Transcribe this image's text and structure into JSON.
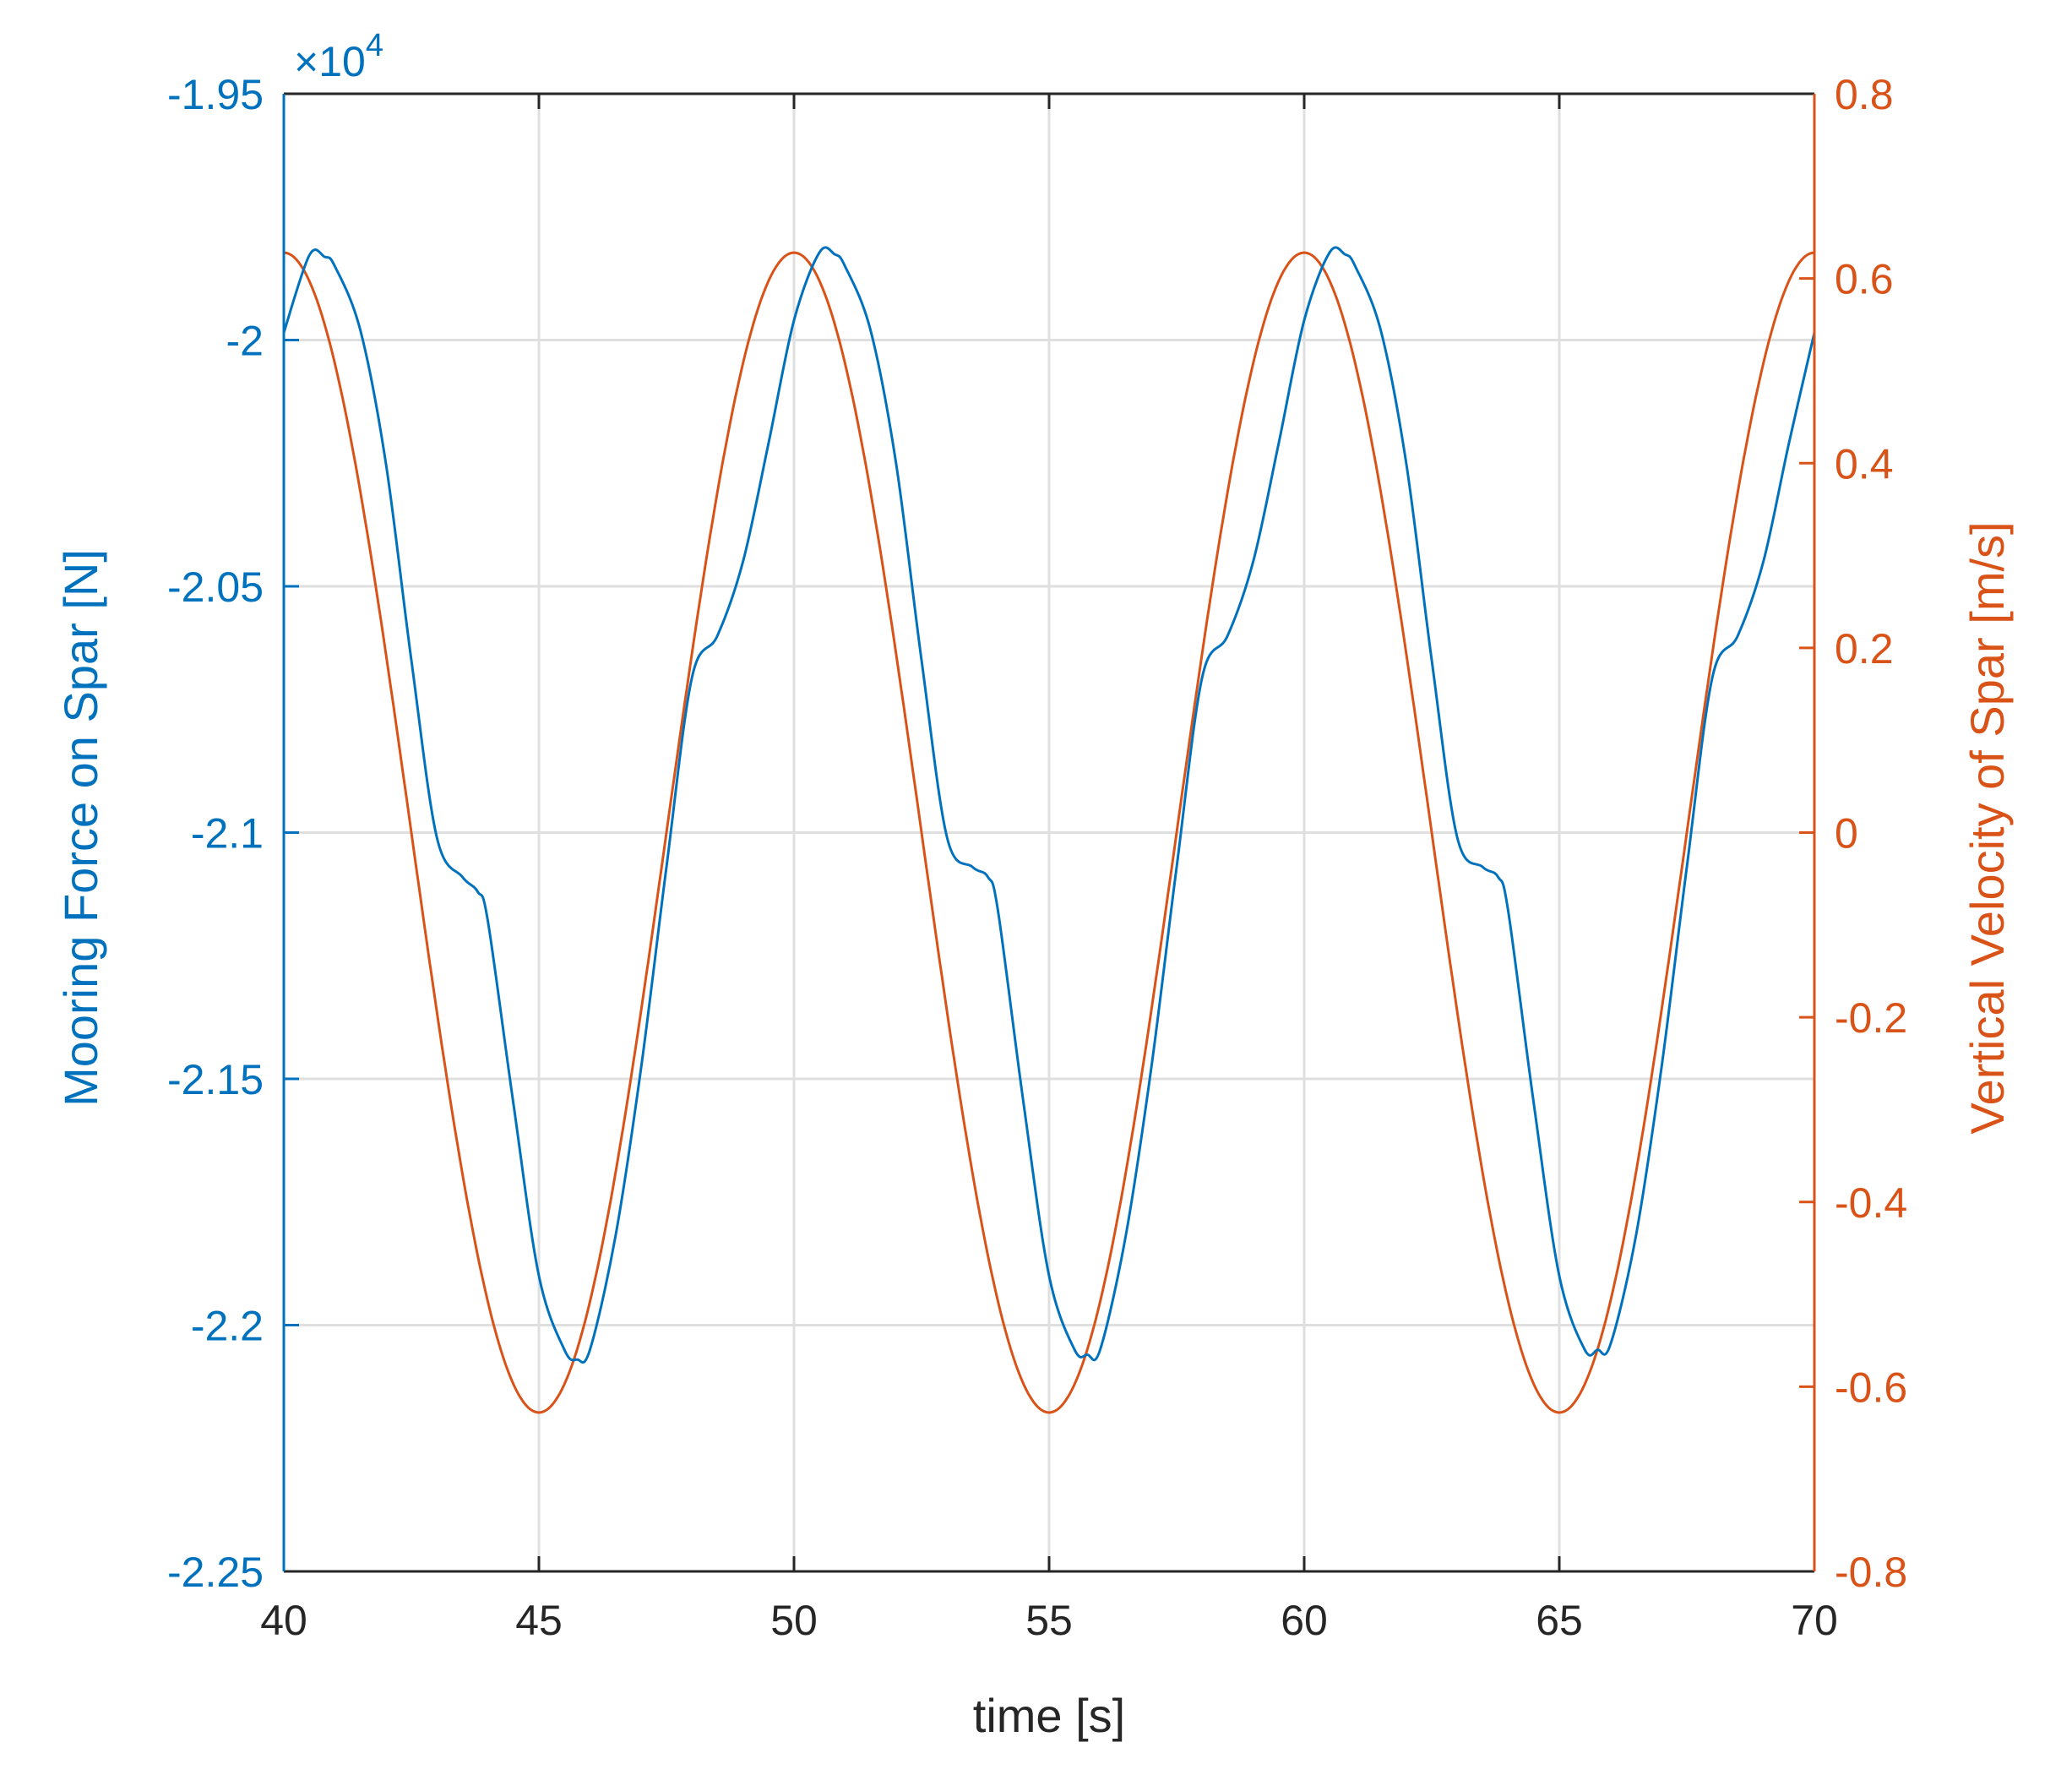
{
  "chart_data": {
    "type": "line",
    "xlabel": "time [s]",
    "ylabel_left": "Mooring Force on Spar [N]",
    "ylabel_right": "Vertical Velocity of Spar [m/s]",
    "left_axis_multiplier": "×10",
    "left_axis_exponent": "4",
    "xlim": [
      40,
      70
    ],
    "ylim_left": [
      -2.25,
      -1.95
    ],
    "ylim_right": [
      -0.8,
      0.8
    ],
    "x_ticks": [
      "40",
      "45",
      "50",
      "55",
      "60",
      "65",
      "70"
    ],
    "y_left_ticks": [
      "-1.95",
      "-2",
      "-2.05",
      "-2.1",
      "-2.15",
      "-2.2",
      "-2.25"
    ],
    "y_right_ticks": [
      "0.8",
      "0.6",
      "0.4",
      "0.2",
      "0",
      "-0.2",
      "-0.4",
      "-0.6",
      "-0.8"
    ],
    "grid": true,
    "colors": {
      "left": "#0072BD",
      "right": "#D95319",
      "axis": "#262626",
      "grid": "#DFDFDF"
    },
    "series": [
      {
        "axis": "left",
        "color": "#0072BD",
        "x": [
          40.0,
          40.5,
          40.8,
          41.0,
          41.5,
          42.0,
          42.5,
          43.0,
          43.5,
          43.8,
          44.0,
          44.5,
          45.0,
          45.5,
          45.75,
          46.0,
          46.5,
          47.0,
          47.5,
          48.0,
          48.5,
          49.0,
          49.5,
          50.0,
          50.5,
          50.8,
          51.0,
          51.5,
          52.0,
          52.5,
          53.0,
          53.5,
          53.8,
          54.0,
          54.5,
          55.0,
          55.5,
          55.75,
          56.0,
          56.5,
          57.0,
          57.5,
          58.0,
          58.5,
          59.0,
          59.5,
          60.0,
          60.5,
          60.8,
          61.0,
          61.5,
          62.0,
          62.5,
          63.0,
          63.5,
          63.8,
          64.0,
          64.5,
          65.0,
          65.5,
          65.75,
          66.0,
          66.5,
          67.0,
          67.5,
          68.0,
          68.5,
          69.0,
          69.5,
          70.0
        ],
        "y": [
          -1.9985,
          -1.9828,
          -1.9831,
          -1.985,
          -1.998,
          -2.025,
          -2.065,
          -2.101,
          -2.109,
          -2.112,
          -2.118,
          -2.155,
          -2.19,
          -2.205,
          -2.207,
          -2.205,
          -2.182,
          -2.148,
          -2.107,
          -2.0685,
          -2.06,
          -2.045,
          -2.021,
          -1.996,
          -1.9822,
          -1.9826,
          -1.985,
          -1.998,
          -2.025,
          -2.065,
          -2.101,
          -2.107,
          -2.109,
          -2.116,
          -2.155,
          -2.19,
          -2.205,
          -2.206,
          -2.205,
          -2.182,
          -2.148,
          -2.107,
          -2.0685,
          -2.06,
          -2.045,
          -2.021,
          -1.996,
          -1.9822,
          -1.9826,
          -1.985,
          -1.998,
          -2.025,
          -2.065,
          -2.101,
          -2.107,
          -2.109,
          -2.116,
          -2.155,
          -2.19,
          -2.205,
          -2.205,
          -2.204,
          -2.182,
          -2.148,
          -2.107,
          -2.0685,
          -2.06,
          -2.045,
          -2.021,
          -1.9985
        ]
      },
      {
        "axis": "right",
        "color": "#D95319",
        "function": "0.628 * cos(2*pi*(t-40)/10)",
        "amplitude": 0.628,
        "period": 10,
        "phase_peak_time": 40
      }
    ]
  }
}
